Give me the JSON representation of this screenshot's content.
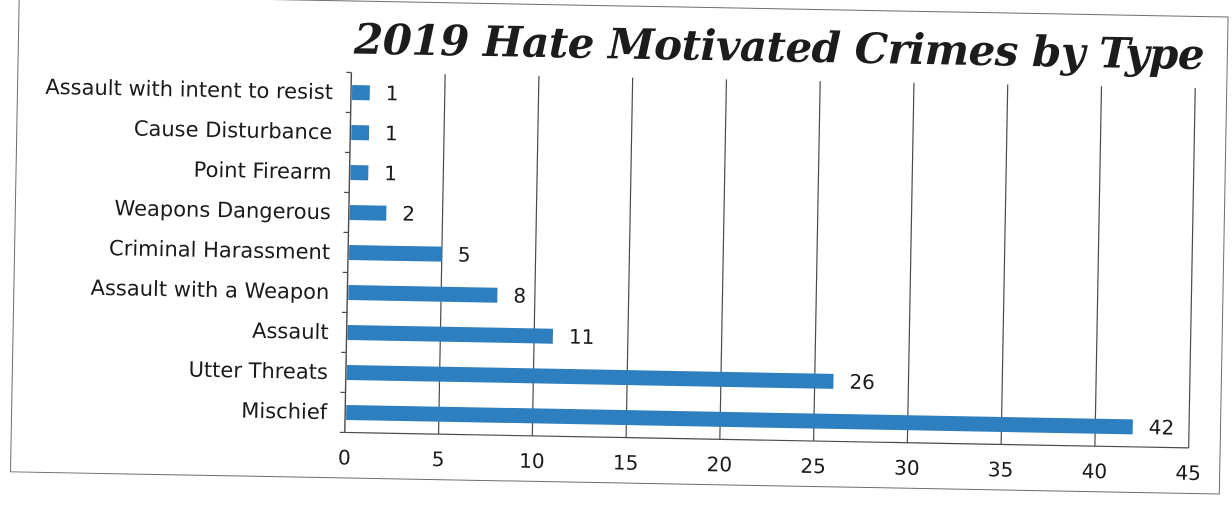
{
  "chart_data": {
    "type": "bar",
    "orientation": "horizontal",
    "title": "2019 Hate Motivated Crimes by Type",
    "xlabel": "",
    "ylabel": "",
    "categories": [
      "Assault with intent to resist",
      "Cause Disturbance",
      "Point Firearm",
      "Weapons Dangerous",
      "Criminal Harassment",
      "Assault with a Weapon",
      "Assault",
      "Utter Threats",
      "Mischief"
    ],
    "values": [
      1,
      1,
      1,
      2,
      5,
      8,
      11,
      26,
      42
    ],
    "data_labels": [
      "1",
      "1",
      "1",
      "2",
      "5",
      "8",
      "11",
      "26",
      "42"
    ],
    "xlim": [
      0,
      45
    ],
    "xticks": [
      "0",
      "5",
      "10",
      "15",
      "20",
      "25",
      "30",
      "35",
      "40",
      "45"
    ],
    "grid": "vertical",
    "legend": "none",
    "colors": {
      "bar": "#2e7fbf",
      "grid": "#4a4a4a",
      "text": "#1a1a1a"
    }
  }
}
